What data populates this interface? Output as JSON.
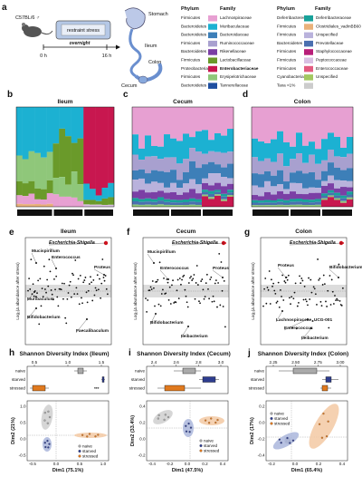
{
  "panel_a": {
    "label": "a",
    "mouse_label": "C57BL/6 ♂",
    "restraint_label": "restraint stress",
    "overnight_label": "overnight",
    "time_start": "0 h",
    "time_end": "16 h",
    "organs": [
      "Stomach",
      "Ileum",
      "Cecum",
      "Colon"
    ]
  },
  "legend": {
    "headers": [
      "Phylum",
      "Family",
      "Phylum",
      "Family"
    ],
    "col1": [
      {
        "phylum": "Firmicutes",
        "family": "Lachnospiraceae",
        "color": "#e7a0d2"
      },
      {
        "phylum": "Bacteroidetes",
        "family": "Muribaculaceae",
        "color": "#1cb1d2"
      },
      {
        "phylum": "Bacteroidetes",
        "family": "Bacteroidaceae",
        "color": "#3d7fb8"
      },
      {
        "phylum": "Firmicutes",
        "family": "Ruminococcaceae",
        "color": "#a8a0cf"
      },
      {
        "phylum": "Bacteroidetes",
        "family": "Rikenellaceae",
        "color": "#7b3fa5"
      },
      {
        "phylum": "Firmicutes",
        "family": "Lactobacillaceae",
        "color": "#6a9a2a"
      },
      {
        "phylum": "Proteobacteria",
        "family": "Enterobacteriaceae",
        "color": "#c8174f",
        "highlight": true
      },
      {
        "phylum": "Firmicutes",
        "family": "Erysipelotrichaceae",
        "color": "#8fc77a"
      },
      {
        "phylum": "Bacteroidetes",
        "family": "Tannerellaceae",
        "color": "#1f4fa0"
      }
    ],
    "col2": [
      {
        "phylum": "Deferribacteres",
        "family": "Deferribacteraceae",
        "color": "#19a29a"
      },
      {
        "phylum": "Firmicutes",
        "family": "Clostridiales_vadinBB60",
        "color": "#e9b17a"
      },
      {
        "phylum": "Firmicutes",
        "family": "Unspecified",
        "color": "#b9b2dc"
      },
      {
        "phylum": "Bacteroidetes",
        "family": "Prevotellaceae",
        "color": "#4a6fb0"
      },
      {
        "phylum": "Firmicutes",
        "family": "Staphylococcaceae",
        "color": "#b81e79"
      },
      {
        "phylum": "Firmicutes",
        "family": "Peptococcaceae",
        "color": "#d9c0e3"
      },
      {
        "phylum": "Firmicutes",
        "family": "Enterococcaceae",
        "color": "#e35b80"
      },
      {
        "phylum": "Cyanobacteria",
        "family": "Unspecified",
        "color": "#a3c860"
      },
      {
        "phylum": "Taxa <1%",
        "family": "",
        "color": "#cccccc"
      }
    ]
  },
  "bar_panels": [
    {
      "label": "b",
      "title": "Ileum"
    },
    {
      "label": "c",
      "title": "Cecum"
    },
    {
      "label": "d",
      "title": "Colon"
    }
  ],
  "groups": [
    "naive",
    "starved",
    "stressed"
  ],
  "volcano_panels": [
    {
      "label": "e",
      "title": "Ileum",
      "ylabel": "Log₂(Δ abundance after stress)",
      "taxa": [
        "Escherichia-Shigella",
        "Mucispirillum",
        "Enterococcus",
        "Proteus",
        "Muribaculum",
        "Bifidobacterium",
        "Faecalibaculum"
      ]
    },
    {
      "label": "f",
      "title": "Cecum",
      "ylabel": "Log₂(Δ abundance after stress)",
      "taxa": [
        "Escherichia-Shigella",
        "Mucispirillum",
        "Enterococcus",
        "Proteus",
        "Bifidobacterium",
        "Ileibacterium"
      ]
    },
    {
      "label": "g",
      "title": "Colon",
      "ylabel": "Log₂(Δ abundance after stress)",
      "taxa": [
        "Escherichia-Shigella",
        "Enterococcus",
        "Proteus",
        "Bifidobacterium",
        "Lachnospiraceae_UCG-001",
        "Ileibacterium"
      ]
    }
  ],
  "diversity_panels": [
    {
      "label": "h",
      "title": "Shannon Diversity Index (Ileum)",
      "top_ticks": [
        "0.5",
        "1.0",
        "1.5"
      ],
      "sig": "***",
      "xlabel": "Dim1 (75.1%)",
      "ylabel": "Dim2 (21%)",
      "x_ticks": [
        "-0.5",
        "0.0",
        "0.5",
        "1.0"
      ],
      "y_ticks": [
        "-0.5",
        "0.0",
        "0.5",
        "1.0"
      ]
    },
    {
      "label": "i",
      "title": "Shannon Diversity Index (Cecum)",
      "top_ticks": [
        "2.4",
        "2.6",
        "2.8",
        "3.0"
      ],
      "sig": "",
      "xlabel": "Dim1 (47.5%)",
      "ylabel": "Dim2 (33.4%)",
      "x_ticks": [
        "-0.4",
        "-0.2",
        "0.0",
        "0.2",
        "0.4"
      ],
      "y_ticks": [
        "-0.2",
        "0.0",
        "0.2",
        "0.4"
      ]
    },
    {
      "label": "j",
      "title": "Shannon Diversity Index (Colon)",
      "top_ticks": [
        "2.25",
        "2.50",
        "2.75",
        "3.00"
      ],
      "sig": "",
      "xlabel": "Dim1 (65.4%)",
      "ylabel": "Dim2 (17%)",
      "x_ticks": [
        "-0.2",
        "0.0",
        "0.2",
        "0.4"
      ],
      "y_ticks": [
        "-0.4",
        "-0.2",
        "0.0",
        "0.2"
      ]
    }
  ],
  "pca_legend": [
    "naive",
    "starved",
    "stressed"
  ],
  "colors": {
    "naive": "#aaaaaa",
    "starved": "#2e3d8f",
    "stressed": "#e07a1f",
    "highlight": "#d0131f"
  }
}
